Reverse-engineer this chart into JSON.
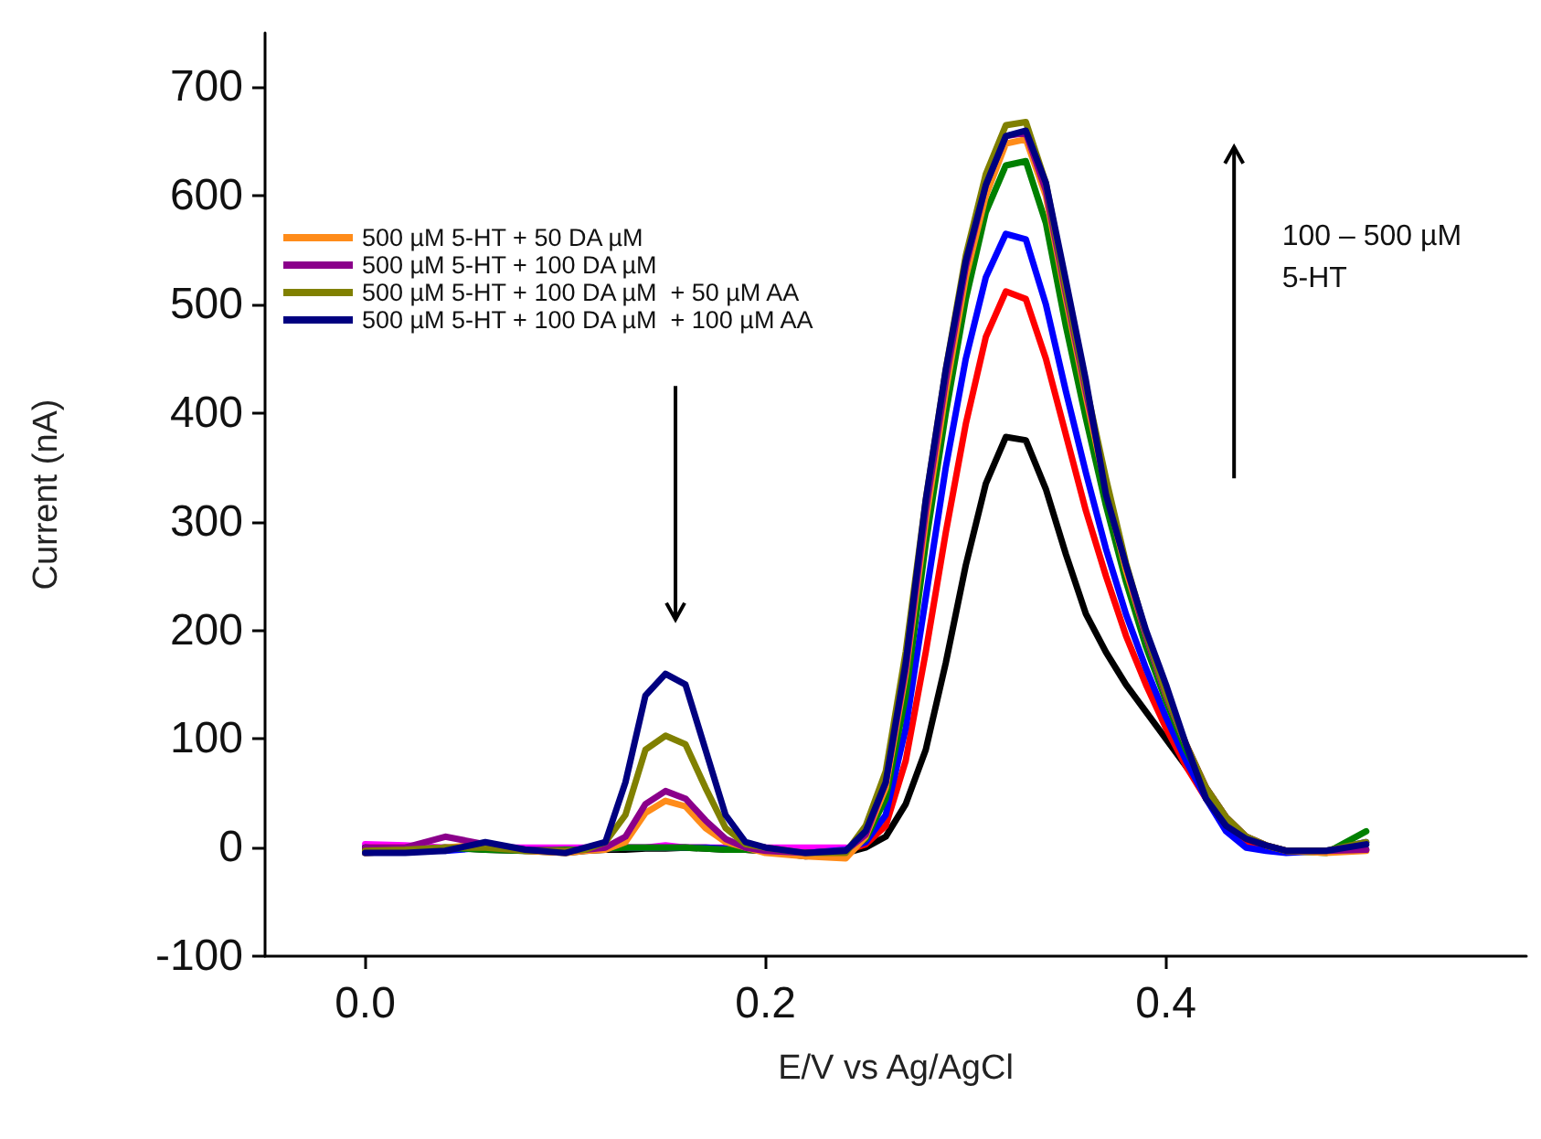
{
  "chart_data": {
    "type": "line",
    "xlabel": "E/V vs Ag/AgCl",
    "ylabel": "Current (nA)",
    "x": [
      0,
      0.02,
      0.04,
      0.06,
      0.08,
      0.1,
      0.11,
      0.12,
      0.13,
      0.14,
      0.15,
      0.16,
      0.17,
      0.18,
      0.19,
      0.2,
      0.22,
      0.24,
      0.25,
      0.26,
      0.27,
      0.28,
      0.29,
      0.3,
      0.31,
      0.32,
      0.33,
      0.34,
      0.35,
      0.36,
      0.37,
      0.38,
      0.39,
      0.4,
      0.41,
      0.42,
      0.43,
      0.44,
      0.45,
      0.46,
      0.48,
      0.5
    ],
    "series": [
      {
        "color": "#ff00ff",
        "values": [
          3,
          2,
          0,
          0,
          0,
          0,
          0,
          0,
          0,
          0,
          2,
          0,
          0,
          0,
          0,
          0,
          0,
          0,
          null,
          null,
          null,
          null,
          null,
          null,
          null,
          null,
          null,
          null,
          null,
          null,
          null,
          null,
          null,
          null,
          null,
          null,
          null,
          null,
          null,
          null,
          null,
          null
        ]
      },
      {
        "color": "#000000",
        "values": [
          -5,
          -3,
          0,
          -2,
          -3,
          -5,
          -3,
          -2,
          -2,
          -1,
          -1,
          0,
          -1,
          -2,
          -2,
          -3,
          -8,
          -5,
          0,
          10,
          40,
          90,
          170,
          260,
          335,
          378,
          375,
          330,
          270,
          215,
          180,
          150,
          125,
          100,
          75,
          50,
          25,
          8,
          0,
          -3,
          -3,
          -2
        ]
      },
      {
        "color": "#ff0000",
        "values": [
          0,
          0,
          -2,
          0,
          -2,
          -3,
          -2,
          -1,
          0,
          0,
          0,
          0,
          0,
          -1,
          -2,
          -3,
          -6,
          -3,
          3,
          20,
          80,
          180,
          290,
          390,
          470,
          512,
          505,
          450,
          380,
          310,
          250,
          195,
          150,
          110,
          75,
          45,
          20,
          5,
          0,
          -3,
          null,
          null
        ]
      },
      {
        "color": "#0000ff",
        "values": [
          0,
          -2,
          -3,
          0,
          -2,
          -3,
          -2,
          -1,
          0,
          0,
          0,
          0,
          0,
          -1,
          -2,
          -2,
          -5,
          -2,
          5,
          30,
          110,
          230,
          350,
          450,
          525,
          565,
          560,
          500,
          420,
          345,
          275,
          215,
          165,
          120,
          80,
          45,
          15,
          0,
          -3,
          -5,
          -3,
          5
        ]
      },
      {
        "color": "#008000",
        "values": [
          0,
          -2,
          0,
          -2,
          -3,
          -2,
          -2,
          -1,
          0,
          0,
          0,
          0,
          -1,
          -2,
          -2,
          -3,
          -5,
          -3,
          8,
          45,
          140,
          280,
          400,
          505,
          585,
          628,
          632,
          575,
          480,
          395,
          315,
          245,
          185,
          135,
          90,
          55,
          28,
          10,
          2,
          -3,
          -5,
          15
        ]
      },
      {
        "name": "500 µM 5-HT + 50 DA µM",
        "color": "#ff8c1a",
        "values": [
          -5,
          -3,
          0,
          3,
          -3,
          -5,
          -3,
          -2,
          5,
          32,
          43,
          38,
          18,
          5,
          0,
          -5,
          -8,
          -10,
          10,
          55,
          160,
          300,
          420,
          525,
          600,
          648,
          652,
          600,
          505,
          415,
          330,
          255,
          195,
          140,
          95,
          55,
          28,
          10,
          2,
          -3,
          -5,
          -3
        ]
      },
      {
        "name": "500 µM 5-HT + 100 DA µM",
        "color": "#8b008b",
        "values": [
          0,
          0,
          10,
          3,
          -2,
          -3,
          -2,
          0,
          10,
          40,
          52,
          45,
          25,
          8,
          0,
          -3,
          -5,
          -3,
          12,
          60,
          165,
          310,
          430,
          535,
          610,
          655,
          658,
          605,
          510,
          420,
          335,
          260,
          195,
          140,
          95,
          55,
          28,
          10,
          2,
          -3,
          -3,
          -2
        ]
      },
      {
        "name": "500 µM 5-HT + 100 DA µM  + 50 µM AA",
        "color": "#808000",
        "values": [
          -3,
          -2,
          0,
          0,
          -3,
          -3,
          -2,
          5,
          30,
          90,
          103,
          95,
          55,
          18,
          3,
          0,
          -5,
          -5,
          20,
          70,
          180,
          320,
          440,
          545,
          620,
          665,
          668,
          612,
          515,
          425,
          340,
          262,
          198,
          142,
          95,
          55,
          28,
          10,
          2,
          -3,
          -3,
          5
        ]
      },
      {
        "name": "500 µM 5-HT + 100 DA µM  + 100 µM AA",
        "color": "#000080",
        "values": [
          -5,
          -5,
          -3,
          5,
          -2,
          -5,
          0,
          5,
          60,
          140,
          160,
          150,
          90,
          30,
          5,
          0,
          -5,
          -3,
          15,
          60,
          170,
          320,
          440,
          540,
          610,
          655,
          660,
          612,
          522,
          430,
          325,
          260,
          200,
          150,
          95,
          45,
          20,
          8,
          2,
          -3,
          -3,
          3
        ]
      }
    ],
    "xlim": [
      -0.05,
      0.58
    ],
    "xticks": [
      {
        "value": 0,
        "label": "0.0"
      },
      0.2,
      0.4
    ],
    "ylim": [
      -100,
      750
    ],
    "yticks": [
      -100,
      0,
      100,
      200,
      300,
      400,
      500,
      600,
      700
    ],
    "annotations": [
      "100 – 500 µM\n5-HT"
    ],
    "legend": "top left",
    "grid": false,
    "marker": "none",
    "line_style": "solid"
  }
}
